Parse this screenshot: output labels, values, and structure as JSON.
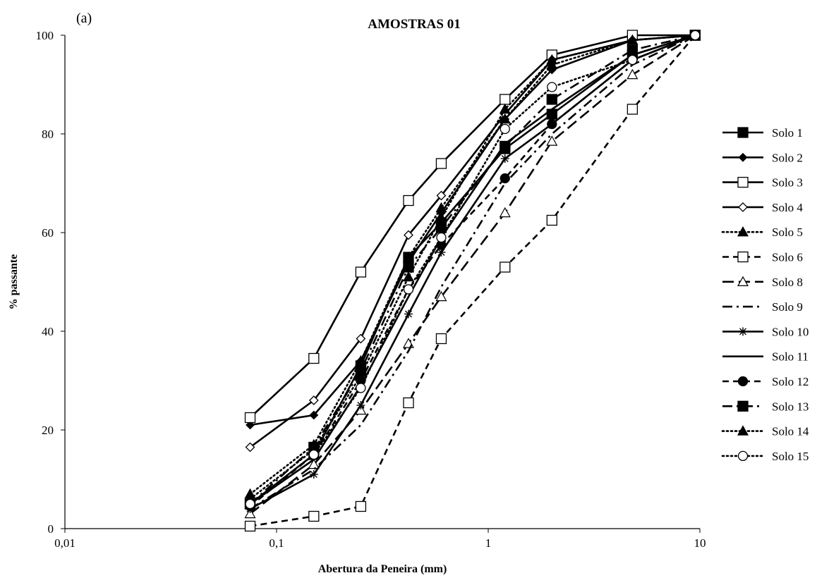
{
  "chart_data": {
    "type": "line",
    "panel_tag": "(a)",
    "title": "AMOSTRAS 01",
    "xlabel": "Abertura da Peneira (mm)",
    "ylabel": "% passante",
    "xscale": "log",
    "xlim": [
      0.01,
      10
    ],
    "ylim": [
      0,
      100
    ],
    "xticks": [
      0.01,
      0.1,
      1,
      10
    ],
    "xtick_labels": [
      "0,01",
      "0,1",
      "1",
      "10"
    ],
    "yticks": [
      0,
      20,
      40,
      60,
      80,
      100
    ],
    "ytick_labels": [
      "0",
      "20",
      "40",
      "60",
      "80",
      "100"
    ],
    "grid": false,
    "legend_position": "right",
    "x": [
      0.075,
      0.15,
      0.25,
      0.42,
      0.6,
      1.2,
      2.0,
      4.8,
      9.5
    ],
    "series": [
      {
        "name": "Solo 1",
        "dash": "solid",
        "marker": "square",
        "values": [
          5,
          15,
          33,
          55,
          62,
          77,
          84,
          96,
          100
        ]
      },
      {
        "name": "Solo 2",
        "dash": "solid",
        "marker": "diamond",
        "values": [
          21,
          23,
          34,
          54,
          64,
          83,
          93,
          99,
          100
        ]
      },
      {
        "name": "Solo 3",
        "dash": "solid",
        "marker": "square-open",
        "values": [
          22.5,
          34.5,
          52,
          66.5,
          74,
          87,
          96,
          100,
          100
        ]
      },
      {
        "name": "Solo 4",
        "dash": "solid",
        "marker": "diamond-open",
        "values": [
          16.5,
          26,
          38.5,
          59.5,
          67.5,
          84,
          95,
          99,
          100
        ]
      },
      {
        "name": "Solo 5",
        "dash": "dotted",
        "marker": "triangle",
        "values": [
          7,
          17,
          34,
          55,
          65,
          83,
          94,
          99,
          100
        ]
      },
      {
        "name": "Solo 6",
        "dash": "dashed",
        "marker": "square-open",
        "values": [
          0.5,
          2.5,
          4.5,
          25.5,
          38.5,
          53,
          62.5,
          85,
          100
        ]
      },
      {
        "name": "Solo 8",
        "dash": "longdash",
        "marker": "triangle-open",
        "values": [
          3,
          13,
          24,
          37.5,
          47,
          64,
          78.5,
          92,
          100
        ]
      },
      {
        "name": "Solo 9",
        "dash": "dashdot",
        "marker": "none",
        "values": [
          4,
          12,
          21,
          36,
          49,
          70,
          80,
          94,
          100
        ]
      },
      {
        "name": "Solo 10",
        "dash": "solid",
        "marker": "asterisk",
        "values": [
          4,
          11,
          25,
          43.5,
          56,
          75,
          82,
          95,
          100
        ]
      },
      {
        "name": "Solo 11",
        "dash": "solid",
        "marker": "none",
        "values": [
          5,
          14,
          29,
          47,
          59,
          78,
          85,
          96,
          100
        ]
      },
      {
        "name": "Solo 12",
        "dash": "dashed",
        "marker": "circle",
        "values": [
          4.5,
          15,
          30,
          48.5,
          57.5,
          71,
          82,
          95,
          100
        ]
      },
      {
        "name": "Solo 13",
        "dash": "dashdot",
        "marker": "square",
        "values": [
          5,
          16.5,
          32,
          53,
          61,
          77.5,
          87,
          97,
          100
        ]
      },
      {
        "name": "Solo 14",
        "dash": "dotted",
        "marker": "triangle",
        "values": [
          6,
          16,
          31,
          51,
          63,
          85,
          95,
          99,
          100
        ]
      },
      {
        "name": "Solo 15",
        "dash": "dotted",
        "marker": "circle-open",
        "values": [
          5,
          15,
          28.5,
          48.5,
          59,
          81,
          89.5,
          95,
          100
        ]
      }
    ]
  }
}
